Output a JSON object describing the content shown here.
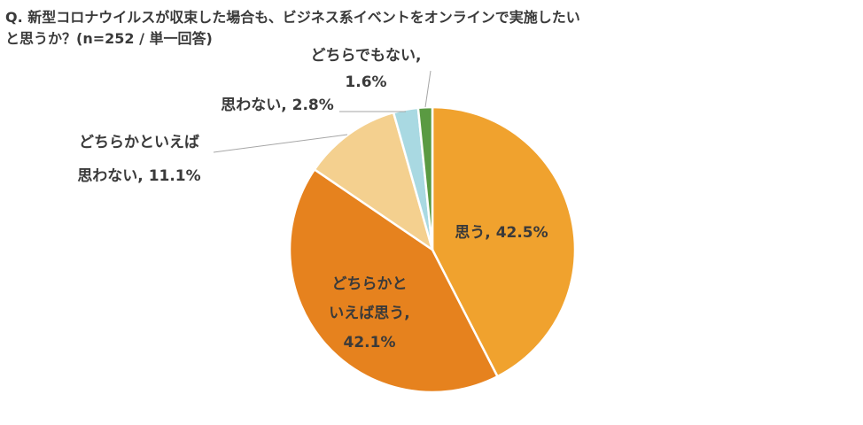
{
  "title": {
    "line1": "Q. 新型コロナウイルスが収束した場合も、ビジネス系イベントをオンラインで実施したい",
    "line2": "と思うか？(n=252 / 単一回答)"
  },
  "chart_data": {
    "type": "pie",
    "title": "Q. 新型コロナウイルスが収束した場合も、ビジネス系イベントをオンラインで実施したいと思うか？(n=252 / 単一回答)",
    "unit": "%",
    "slices": [
      {
        "label": "思う",
        "value": 42.5,
        "color": "#f0a22e",
        "label_lines": [
          "思う, 42.5%"
        ]
      },
      {
        "label": "どちらかといえば思う",
        "value": 42.1,
        "color": "#e6821e",
        "label_lines": [
          "どちらかと",
          "いえば思う,",
          "42.1%"
        ]
      },
      {
        "label": "どちらかといえば思わない",
        "value": 11.1,
        "color": "#f4d08f",
        "label_lines": [
          "どちらかといえば",
          "思わない, 11.1%"
        ]
      },
      {
        "label": "思わない",
        "value": 2.8,
        "color": "#a9d9e2",
        "label_lines": [
          "思わない, 2.8%"
        ]
      },
      {
        "label": "どちらでもない",
        "value": 1.6,
        "color": "#5a9a42",
        "label_lines": [
          "どちらでもない,",
          "1.6%"
        ]
      }
    ]
  }
}
